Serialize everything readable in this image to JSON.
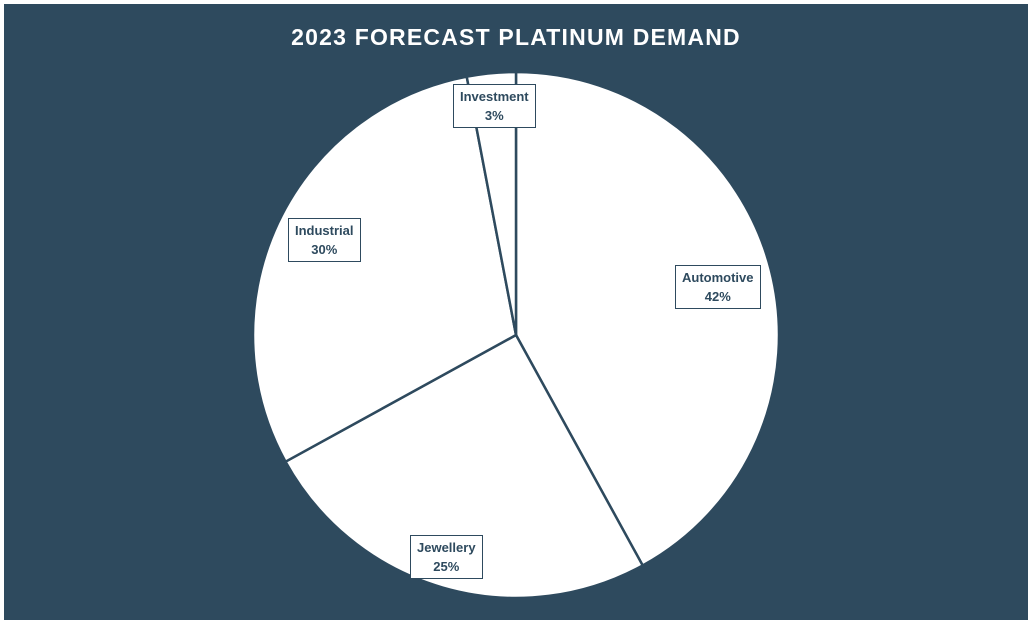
{
  "chart_data": {
    "type": "pie",
    "title": "2023 FORECAST PLATINUM DEMAND",
    "start_angle_deg": 0,
    "direction": "clockwise",
    "slices": [
      {
        "label": "Automotive",
        "value": 42,
        "value_label": "42%"
      },
      {
        "label": "Jewellery",
        "value": 25,
        "value_label": "25%"
      },
      {
        "label": "Industrial",
        "value": 30,
        "value_label": "30%"
      },
      {
        "label": "Investment",
        "value": 3,
        "value_label": "3%"
      }
    ]
  },
  "colors": {
    "background": "#2e4a5e",
    "slice_fill": "#ffffff",
    "slice_border": "#2e4a5e",
    "title": "#ffffff",
    "label_text": "#2e4a5e"
  }
}
